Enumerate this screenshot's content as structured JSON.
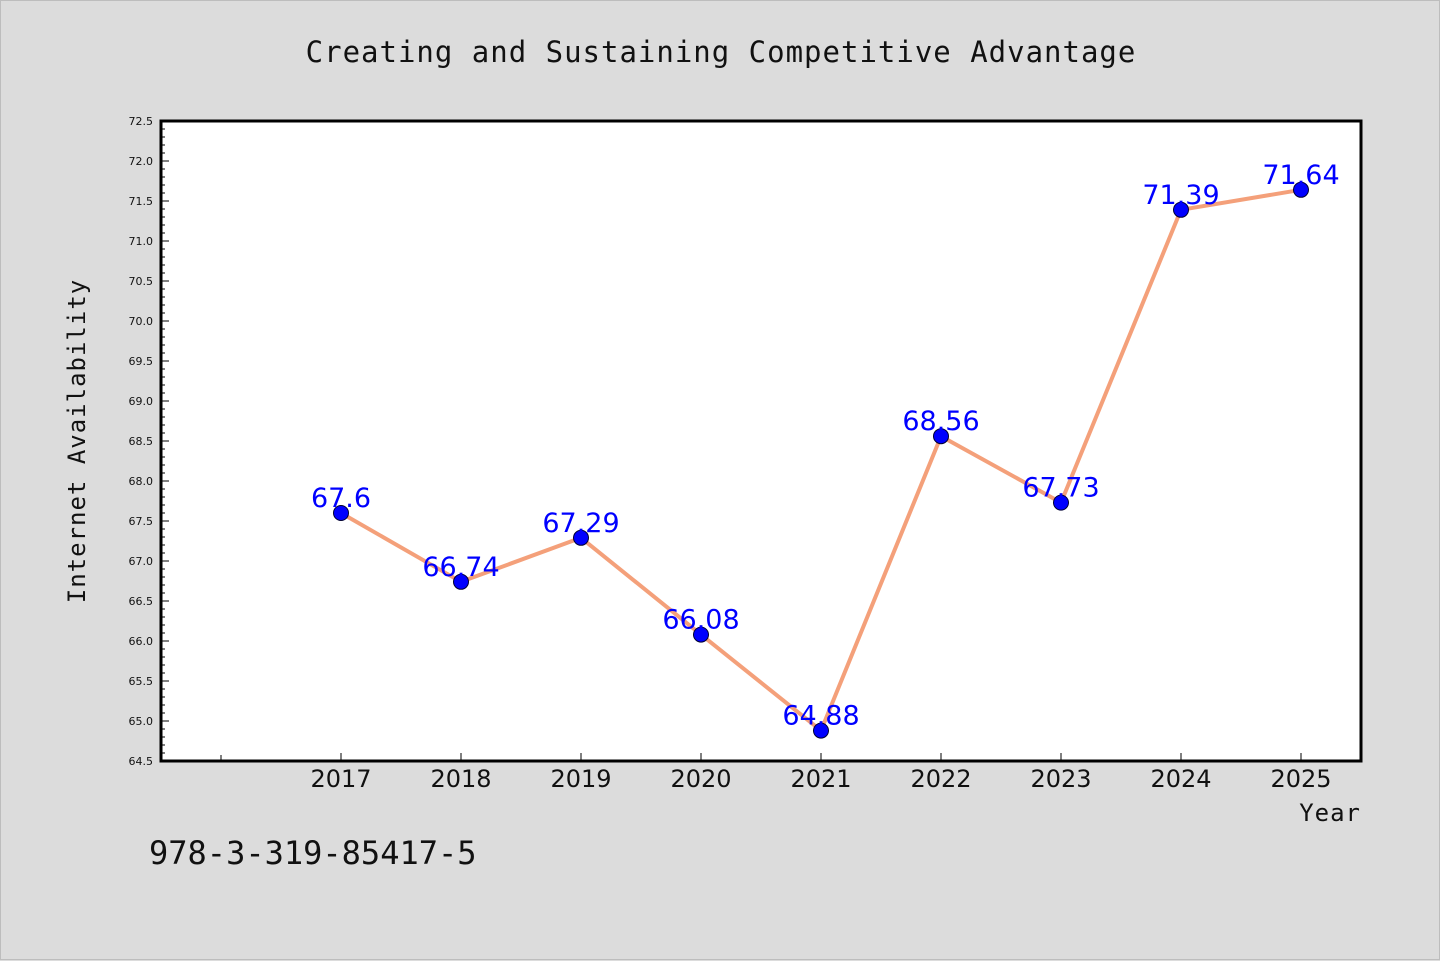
{
  "chart_data": {
    "type": "line",
    "title": "Creating and Sustaining Competitive Advantage",
    "xlabel": "Year",
    "ylabel": "Internet Availability",
    "categories": [
      "2017",
      "2018",
      "2019",
      "2020",
      "2021",
      "2022",
      "2023",
      "2024",
      "2025"
    ],
    "series": [
      {
        "values": [
          67.6,
          66.74,
          67.29,
          66.08,
          64.88,
          68.56,
          67.73,
          71.39,
          71.64
        ],
        "labels": [
          "67.6",
          "66.74",
          "67.29",
          "66.08",
          "64.88",
          "68.56",
          "67.73",
          "71.39",
          "71.64"
        ],
        "line_color": "#f4a07a",
        "marker_color": "#0000ff"
      }
    ],
    "ylim": [
      64.5,
      72.5
    ],
    "yticks": [
      "64.5",
      "65.0",
      "65.5",
      "66.0",
      "66.5",
      "67.0",
      "67.5",
      "68.0",
      "68.5",
      "69.0",
      "69.5",
      "70.0",
      "70.5",
      "71.0",
      "71.5",
      "72.0",
      "72.5"
    ],
    "grid": false,
    "legend": "none"
  },
  "footer": {
    "isbn": "978-3-319-85417-5"
  },
  "colors": {
    "background": "#dcdcdc",
    "plot_background": "#ffffff",
    "line": "#f4a07a",
    "marker": "#0000ff",
    "data_label": "#0000ff"
  }
}
